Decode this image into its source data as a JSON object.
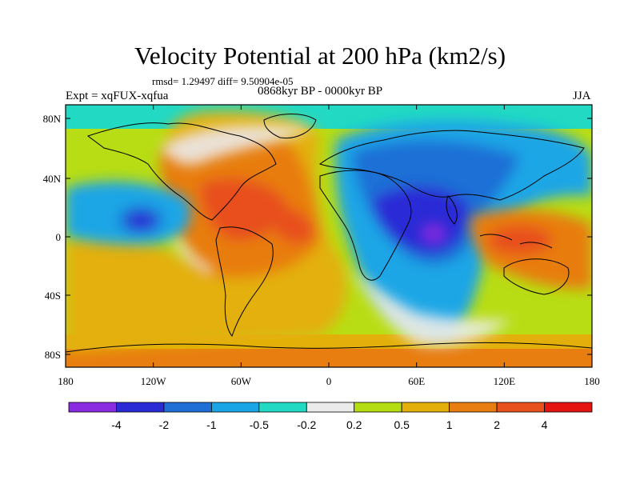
{
  "title": "Velocity Potential at 200 hPa (km2/s)",
  "stats": "rmsd= 1.29497 diff= 9.50904e-05",
  "left_label": "Expt = xqFUX-xqfua",
  "center_label": "0868kyr BP - 0000kyr BP",
  "right_label": "JJA",
  "y_ticks": [
    "80N",
    "40N",
    "0",
    "40S",
    "80S"
  ],
  "x_ticks": [
    "180",
    "120W",
    "60W",
    "0",
    "60E",
    "120E",
    "180"
  ],
  "colorbar": {
    "colors": [
      "#8a2be2",
      "#2b2bd6",
      "#1f6fd6",
      "#1aa6e6",
      "#22d9c3",
      "#ebebeb",
      "#b5dd14",
      "#e3b00b",
      "#e87d10",
      "#e8501c",
      "#e51410"
    ],
    "labels": [
      "-4",
      "-2",
      "-1",
      "-0.5",
      "-0.2",
      "0.2",
      "0.5",
      "1",
      "2",
      "4"
    ]
  },
  "colors": {
    "ocean_base": "#b8dd14",
    "strong_neg": "#8a2be2"
  }
}
